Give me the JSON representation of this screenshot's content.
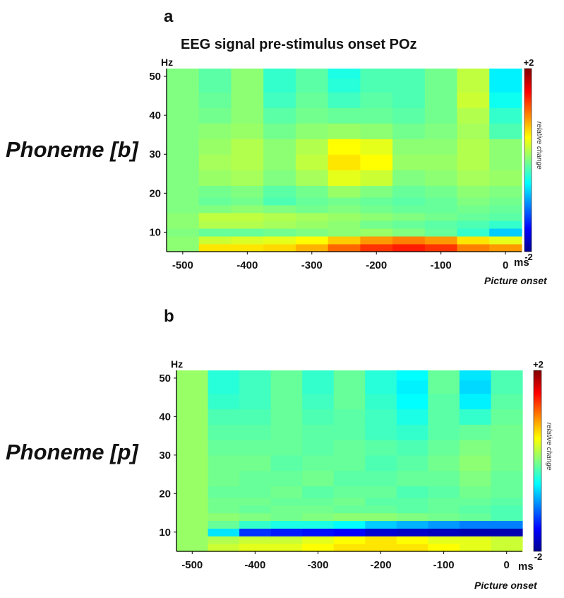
{
  "main_title": "EEG signal pre-stimulus onset POz",
  "panels": [
    {
      "letter": "a",
      "row_label": "Phoneme [b]"
    },
    {
      "letter": "b",
      "row_label": "Phoneme [p]"
    }
  ],
  "colormap": [
    "#00008f",
    "#0000ff",
    "#0080ff",
    "#00ffff",
    "#80ff80",
    "#ffff00",
    "#ff8000",
    "#ff0000",
    "#800000"
  ],
  "chart_data": [
    {
      "type": "heatmap",
      "panel": "a",
      "title": "EEG signal pre-stimulus onset POz",
      "ylabel": "Hz",
      "xlabel": "Picture onset",
      "x_unit": "ms",
      "colorbar_label": "relative change",
      "colorbar_range": [
        -2,
        2
      ],
      "colorbar_ticks": [
        "+2",
        "-2"
      ],
      "xlim": [
        -525,
        25
      ],
      "ylim": [
        5,
        52
      ],
      "x_ticks": [
        "-500",
        "-400",
        "-300",
        "-200",
        "-100",
        "0"
      ],
      "y_ticks": [
        "10",
        "20",
        "30",
        "40",
        "50"
      ],
      "x_centers": [
        -500,
        -450,
        -400,
        -350,
        -300,
        -250,
        -200,
        -150,
        -100,
        -50,
        0
      ],
      "freq_bands": [
        6,
        8,
        10,
        12,
        14,
        16,
        18,
        20,
        24,
        28,
        32,
        36,
        40,
        44,
        48,
        51
      ],
      "z": [
        [
          0.05,
          0.6,
          0.6,
          0.65,
          0.8,
          1.1,
          1.3,
          1.4,
          1.3,
          1.0,
          0.9
        ],
        [
          0.05,
          0.3,
          0.35,
          0.4,
          0.5,
          0.7,
          0.9,
          1.0,
          0.9,
          0.6,
          0.4
        ],
        [
          0.0,
          -0.1,
          -0.1,
          -0.05,
          0.0,
          0.05,
          0.1,
          0.0,
          -0.1,
          -0.3,
          -0.7
        ],
        [
          0.05,
          0.2,
          0.2,
          0.15,
          0.1,
          0.05,
          -0.05,
          -0.1,
          -0.15,
          -0.2,
          -0.3
        ],
        [
          0.05,
          0.25,
          0.25,
          0.2,
          0.15,
          0.1,
          0.05,
          0.0,
          -0.05,
          -0.1,
          -0.15
        ],
        [
          0.0,
          0.0,
          0.05,
          0.0,
          -0.05,
          0.0,
          -0.05,
          -0.1,
          -0.1,
          -0.05,
          -0.1
        ],
        [
          0.0,
          -0.1,
          -0.05,
          -0.2,
          -0.1,
          -0.05,
          -0.1,
          -0.15,
          -0.1,
          0.0,
          -0.05
        ],
        [
          0.0,
          -0.05,
          0.0,
          -0.15,
          -0.05,
          0.1,
          0.0,
          -0.1,
          -0.05,
          0.05,
          0.0
        ],
        [
          0.0,
          0.1,
          0.15,
          0.0,
          0.15,
          0.4,
          0.3,
          0.0,
          0.05,
          0.15,
          0.1
        ],
        [
          0.0,
          0.15,
          0.2,
          0.05,
          0.25,
          0.6,
          0.5,
          0.1,
          0.1,
          0.2,
          0.05
        ],
        [
          0.0,
          0.1,
          0.2,
          0.05,
          0.2,
          0.5,
          0.4,
          0.05,
          0.05,
          0.2,
          0.05
        ],
        [
          0.0,
          0.05,
          0.1,
          -0.05,
          0.05,
          0.1,
          0.05,
          -0.05,
          0.0,
          0.15,
          -0.2
        ],
        [
          0.0,
          -0.05,
          0.05,
          -0.15,
          -0.05,
          -0.1,
          -0.1,
          -0.15,
          -0.05,
          0.2,
          -0.3
        ],
        [
          0.0,
          -0.1,
          0.05,
          -0.25,
          -0.1,
          -0.25,
          -0.15,
          -0.2,
          -0.05,
          0.3,
          -0.45
        ],
        [
          0.0,
          -0.15,
          0.05,
          -0.3,
          -0.15,
          -0.35,
          -0.2,
          -0.2,
          -0.05,
          0.25,
          -0.55
        ],
        [
          0.0,
          -0.15,
          0.05,
          -0.3,
          -0.15,
          -0.4,
          -0.2,
          -0.2,
          -0.05,
          0.25,
          -0.55
        ]
      ]
    },
    {
      "type": "heatmap",
      "panel": "b",
      "title": "",
      "ylabel": "Hz",
      "xlabel": "Picture onset",
      "x_unit": "ms",
      "colorbar_label": "relative change",
      "colorbar_range": [
        -2,
        2
      ],
      "colorbar_ticks": [
        "+2",
        "-2"
      ],
      "xlim": [
        -525,
        25
      ],
      "ylim": [
        5,
        52
      ],
      "x_ticks": [
        "-500",
        "-400",
        "-300",
        "-200",
        "-100",
        "0"
      ],
      "y_ticks": [
        "10",
        "20",
        "30",
        "40",
        "50"
      ],
      "x_centers": [
        -500,
        -450,
        -400,
        -350,
        -300,
        -250,
        -200,
        -150,
        -100,
        -50,
        0
      ],
      "freq_bands": [
        6,
        8,
        10,
        12,
        14,
        16,
        18,
        20,
        24,
        28,
        32,
        36,
        40,
        44,
        48,
        51
      ],
      "z": [
        [
          0.1,
          0.3,
          0.4,
          0.4,
          0.5,
          0.6,
          0.6,
          0.6,
          0.5,
          0.4,
          0.3
        ],
        [
          0.1,
          0.2,
          0.3,
          0.3,
          0.4,
          0.5,
          0.6,
          0.5,
          0.4,
          0.4,
          0.3
        ],
        [
          0.1,
          -0.6,
          -1.3,
          -1.4,
          -1.45,
          -1.5,
          -1.7,
          -1.75,
          -1.8,
          -1.85,
          -1.85
        ],
        [
          0.1,
          -0.1,
          -0.3,
          -0.4,
          -0.4,
          -0.5,
          -0.7,
          -0.8,
          -0.9,
          -1.0,
          -1.0
        ],
        [
          0.1,
          0.05,
          0.0,
          -0.05,
          0.0,
          0.05,
          0.05,
          0.0,
          -0.05,
          -0.1,
          -0.2
        ],
        [
          0.1,
          -0.05,
          -0.1,
          -0.05,
          -0.05,
          -0.1,
          -0.1,
          -0.15,
          -0.1,
          -0.15,
          -0.2
        ],
        [
          0.1,
          -0.05,
          -0.05,
          -0.1,
          -0.1,
          -0.05,
          -0.15,
          -0.15,
          -0.1,
          -0.1,
          -0.15
        ],
        [
          0.1,
          -0.1,
          -0.1,
          -0.05,
          -0.15,
          -0.1,
          -0.1,
          -0.2,
          -0.15,
          -0.05,
          -0.1
        ],
        [
          0.1,
          -0.05,
          -0.1,
          -0.1,
          -0.05,
          -0.15,
          -0.15,
          -0.1,
          -0.1,
          0.0,
          -0.1
        ],
        [
          0.1,
          -0.05,
          -0.05,
          -0.15,
          -0.1,
          -0.1,
          -0.2,
          -0.15,
          -0.05,
          0.05,
          -0.05
        ],
        [
          0.1,
          -0.1,
          -0.1,
          -0.1,
          -0.15,
          -0.1,
          -0.15,
          -0.2,
          -0.1,
          0.0,
          -0.05
        ],
        [
          0.1,
          -0.15,
          -0.15,
          -0.1,
          -0.15,
          -0.15,
          -0.25,
          -0.3,
          -0.15,
          -0.1,
          -0.05
        ],
        [
          0.1,
          -0.2,
          -0.2,
          -0.1,
          -0.2,
          -0.15,
          -0.25,
          -0.4,
          -0.15,
          -0.3,
          -0.1
        ],
        [
          0.1,
          -0.3,
          -0.25,
          -0.1,
          -0.25,
          -0.1,
          -0.3,
          -0.5,
          -0.15,
          -0.55,
          -0.15
        ],
        [
          0.1,
          -0.35,
          -0.25,
          -0.1,
          -0.3,
          -0.1,
          -0.35,
          -0.55,
          -0.1,
          -0.65,
          -0.2
        ],
        [
          0.1,
          -0.35,
          -0.25,
          -0.1,
          -0.3,
          -0.1,
          -0.35,
          -0.5,
          -0.1,
          -0.6,
          -0.2
        ]
      ]
    }
  ]
}
